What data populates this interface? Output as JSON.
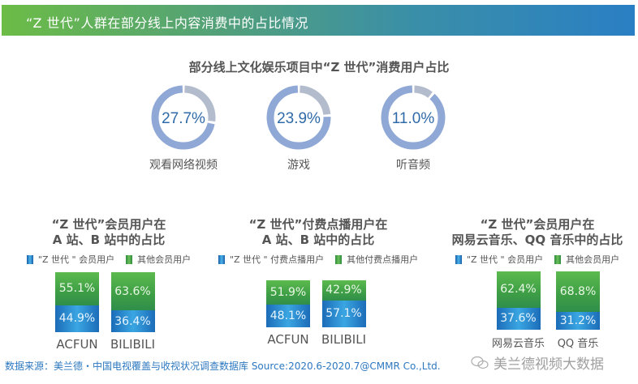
{
  "header": {
    "title": "“Z 世代”人群在部分线上内容消费中的占比情况"
  },
  "colors": {
    "donut_main": "#8fa8d6",
    "donut_rest": "#b2bccd",
    "donut_text": "#2f6aa8",
    "blue": "#2a86cc",
    "green": "#4aa84a",
    "source_text": "#2d78c0"
  },
  "donuts": {
    "title": "部分线上文化娱乐项目中“Z 世代”消费用户占比",
    "items": [
      {
        "value_label": "27.7%",
        "value": 27.7,
        "label": "观看网络视频"
      },
      {
        "value_label": "23.9%",
        "value": 23.9,
        "label": "游戏"
      },
      {
        "value_label": "11.0%",
        "value": 11.0,
        "label": "听音频"
      }
    ]
  },
  "groups": [
    {
      "title_line1": "“Z 世代”会员用户在",
      "title_line2": "A 站、B 站中的占比",
      "legend": [
        "\"Z 世代 \" 会员用户",
        "其他会员用户"
      ],
      "bars": [
        {
          "label": "ACFUN",
          "z": "44.9%",
          "other": "55.1%"
        },
        {
          "label": "BILIBILI",
          "z": "36.4%",
          "other": "63.6%"
        }
      ]
    },
    {
      "title_line1": "“Z 世代”付费点播用户在",
      "title_line2": "A 站、B 站中的占比",
      "legend": [
        "\"Z 世代 \" 付费点播用户",
        "其他付费点播用户"
      ],
      "bars": [
        {
          "label": "ACFUN",
          "z": "48.1%",
          "other": "51.9%"
        },
        {
          "label": "BILIBILI",
          "z": "57.1%",
          "other": "42.9%"
        }
      ]
    },
    {
      "title_line1": "“Z 世代”会员用户在",
      "title_line2": "网易云音乐、QQ 音乐中的占比",
      "legend": [
        "\"Z 世代 \" 会员用户",
        "其他会员用户"
      ],
      "bars": [
        {
          "label": "网易云音乐",
          "z": "37.6%",
          "other": "62.4%"
        },
        {
          "label": "QQ 音乐",
          "z": "31.2%",
          "other": "68.8%"
        }
      ]
    }
  ],
  "footer": {
    "source": "数据来源：美兰德・中国电视覆盖与收视状况调查数据库 Source:2020.6-2020.7@CMMR Co.,Ltd.",
    "watermark": "美兰德视频大数据"
  },
  "chart_data": [
    {
      "type": "pie",
      "title": "部分线上文化娱乐项目中“Z 世代”消费用户占比",
      "categories": [
        "观看网络视频",
        "游戏",
        "听音频"
      ],
      "values": [
        27.7,
        23.9,
        11.0
      ],
      "unit": "%",
      "style": "donut"
    },
    {
      "type": "bar",
      "stacked": true,
      "title": "“Z 世代”会员用户在A 站、B 站中的占比",
      "categories": [
        "ACFUN",
        "BILIBILI"
      ],
      "series": [
        {
          "name": "\"Z 世代\" 会员用户",
          "values": [
            44.9,
            36.4
          ]
        },
        {
          "name": "其他会员用户",
          "values": [
            55.1,
            63.6
          ]
        }
      ],
      "unit": "%"
    },
    {
      "type": "bar",
      "stacked": true,
      "title": "“Z 世代”付费点播用户在A 站、B 站中的占比",
      "categories": [
        "ACFUN",
        "BILIBILI"
      ],
      "series": [
        {
          "name": "\"Z 世代\" 付费点播用户",
          "values": [
            48.1,
            57.1
          ]
        },
        {
          "name": "其他付费点播用户",
          "values": [
            51.9,
            42.9
          ]
        }
      ],
      "unit": "%"
    },
    {
      "type": "bar",
      "stacked": true,
      "title": "“Z 世代”会员用户在网易云音乐、QQ 音乐中的占比",
      "categories": [
        "网易云音乐",
        "QQ 音乐"
      ],
      "series": [
        {
          "name": "\"Z 世代\" 会员用户",
          "values": [
            37.6,
            31.2
          ]
        },
        {
          "name": "其他会员用户",
          "values": [
            62.4,
            68.8
          ]
        }
      ],
      "unit": "%"
    }
  ]
}
